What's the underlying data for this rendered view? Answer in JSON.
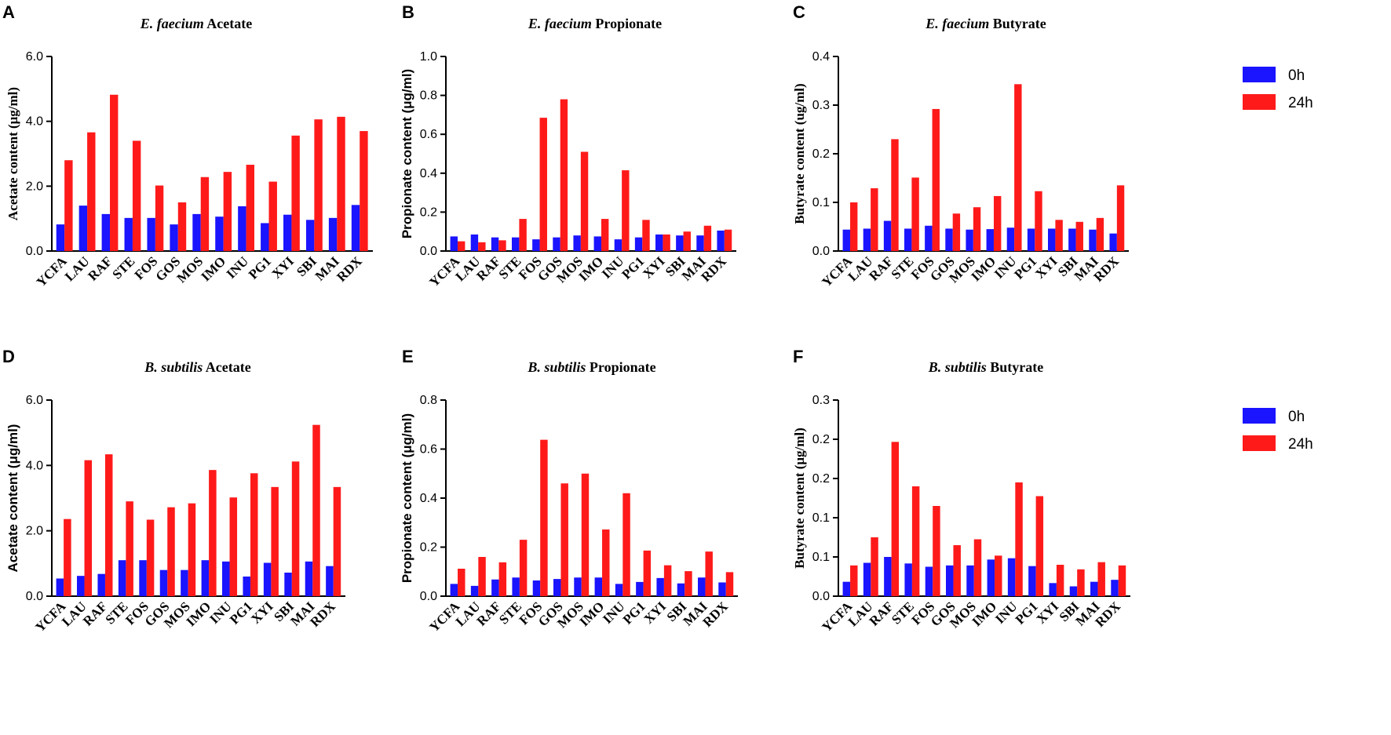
{
  "colors": {
    "series_0h": "#1a14ff",
    "series_24h": "#ff1a1a"
  },
  "legend": [
    {
      "name": "0h",
      "color": "#1a14ff"
    },
    {
      "name": "24h",
      "color": "#ff1a1a"
    }
  ],
  "chart_data": [
    {
      "panel": "A",
      "type": "bar",
      "title_species": "E. faecium",
      "title_metric": "Acetate",
      "ylabel": "Acetate content (μg/ml)",
      "ylim": [
        0,
        6
      ],
      "yticks": [
        "0.0",
        "2.0",
        "4.0",
        "6.0"
      ],
      "categories": [
        "YCFA",
        "LAU",
        "RAF",
        "STE",
        "FOS",
        "GOS",
        "MOS",
        "IMO",
        "INU",
        "PG1",
        "XYI",
        "SBI",
        "MAI",
        "RDX"
      ],
      "series": [
        {
          "name": "0h",
          "values": [
            0.82,
            1.4,
            1.14,
            1.02,
            1.02,
            0.82,
            1.14,
            1.06,
            1.38,
            0.86,
            1.12,
            0.96,
            1.02,
            1.42
          ]
        },
        {
          "name": "24h",
          "values": [
            2.8,
            3.66,
            4.82,
            3.4,
            2.02,
            1.5,
            2.28,
            2.44,
            2.66,
            2.14,
            3.56,
            4.06,
            4.14,
            3.7
          ]
        }
      ]
    },
    {
      "panel": "B",
      "type": "bar",
      "title_species": "E. faecium",
      "title_metric": "Propionate",
      "ylabel": "Propionate content (μg/ml)",
      "ylim": [
        0,
        1
      ],
      "yticks": [
        "0.0",
        "0.2",
        "0.4",
        "0.6",
        "0.8",
        "1.0"
      ],
      "categories": [
        "YCFA",
        "LAU",
        "RAF",
        "STE",
        "FOS",
        "GOS",
        "MOS",
        "IMO",
        "INU",
        "PG1",
        "XYI",
        "SBI",
        "MAI",
        "RDX"
      ],
      "series": [
        {
          "name": "0h",
          "values": [
            0.075,
            0.085,
            0.07,
            0.07,
            0.06,
            0.07,
            0.08,
            0.075,
            0.06,
            0.07,
            0.085,
            0.08,
            0.08,
            0.105
          ]
        },
        {
          "name": "24h",
          "values": [
            0.05,
            0.045,
            0.055,
            0.165,
            0.685,
            0.78,
            0.51,
            0.165,
            0.415,
            0.16,
            0.085,
            0.1,
            0.13,
            0.11
          ]
        }
      ]
    },
    {
      "panel": "C",
      "type": "bar",
      "title_species": "E. faecium",
      "title_metric": "Butyrate",
      "ylabel": "Butyrate content (ug/ml)",
      "ylim": [
        0,
        0.4
      ],
      "yticks": [
        "0.0",
        "0.1",
        "0.2",
        "0.3",
        "0.4"
      ],
      "categories": [
        "YCFA",
        "LAU",
        "RAF",
        "STE",
        "FOS",
        "GOS",
        "MOS",
        "IMO",
        "INU",
        "PG1",
        "XYI",
        "SBI",
        "MAI",
        "RDX"
      ],
      "series": [
        {
          "name": "0h",
          "values": [
            0.044,
            0.046,
            0.062,
            0.046,
            0.052,
            0.046,
            0.044,
            0.045,
            0.048,
            0.046,
            0.046,
            0.046,
            0.044,
            0.036
          ]
        },
        {
          "name": "24h",
          "values": [
            0.1,
            0.129,
            0.23,
            0.151,
            0.292,
            0.077,
            0.09,
            0.113,
            0.343,
            0.123,
            0.064,
            0.06,
            0.068,
            0.135
          ]
        }
      ]
    },
    {
      "panel": "D",
      "type": "bar",
      "title_species": "B. subtilis",
      "title_metric": "Acetate",
      "ylabel": "Acetate content (μg/ml)",
      "ylim": [
        0,
        6
      ],
      "yticks": [
        "0.0",
        "2.0",
        "4.0",
        "6.0"
      ],
      "categories": [
        "YCFA",
        "LAU",
        "RAF",
        "STE",
        "FOS",
        "GOS",
        "MOS",
        "IMO",
        "INU",
        "PG1",
        "XYI",
        "SBI",
        "MAI",
        "RDX"
      ],
      "series": [
        {
          "name": "0h",
          "values": [
            0.54,
            0.62,
            0.68,
            1.1,
            1.1,
            0.8,
            0.8,
            1.1,
            1.06,
            0.6,
            1.02,
            0.72,
            1.06,
            0.92
          ]
        },
        {
          "name": "24h",
          "values": [
            2.36,
            4.16,
            4.34,
            2.9,
            2.34,
            2.72,
            2.84,
            3.86,
            3.02,
            3.76,
            3.34,
            4.12,
            5.24,
            3.34
          ]
        }
      ]
    },
    {
      "panel": "E",
      "type": "bar",
      "title_species": "B. subtilis",
      "title_metric": "Propionate",
      "ylabel": "Propionate content (μg/ml)",
      "ylim": [
        0,
        0.8
      ],
      "yticks": [
        "0.0",
        "0.2",
        "0.4",
        "0.6",
        "0.8"
      ],
      "categories": [
        "YCFA",
        "LAU",
        "RAF",
        "STE",
        "FOS",
        "GOS",
        "MOS",
        "IMO",
        "INU",
        "PG1",
        "XYI",
        "SBI",
        "MAI",
        "RDX"
      ],
      "series": [
        {
          "name": "0h",
          "values": [
            0.05,
            0.042,
            0.068,
            0.076,
            0.064,
            0.07,
            0.076,
            0.076,
            0.05,
            0.058,
            0.074,
            0.052,
            0.076,
            0.056
          ]
        },
        {
          "name": "24h",
          "values": [
            0.112,
            0.16,
            0.138,
            0.23,
            0.638,
            0.46,
            0.5,
            0.272,
            0.42,
            0.186,
            0.126,
            0.102,
            0.182,
            0.098
          ]
        }
      ]
    },
    {
      "panel": "F",
      "type": "bar",
      "title_species": "B. subtilis",
      "title_metric": "Butyrate",
      "ylabel": "Butyrate content (μg/ml)",
      "ylim": [
        0,
        0.3
      ],
      "yticks": [
        "0.0",
        "0.1",
        "0.1",
        "0.2",
        "0.2",
        "0.3"
      ],
      "categories": [
        "YCFA",
        "LAU",
        "RAF",
        "STE",
        "FOS",
        "GOS",
        "MOS",
        "IMO",
        "INU",
        "PG1",
        "XYI",
        "SBI",
        "MAI",
        "RDX"
      ],
      "series": [
        {
          "name": "0h",
          "values": [
            0.022,
            0.051,
            0.06,
            0.05,
            0.045,
            0.047,
            0.047,
            0.056,
            0.058,
            0.046,
            0.02,
            0.015,
            0.022,
            0.025
          ]
        },
        {
          "name": "24h",
          "values": [
            0.047,
            0.09,
            0.236,
            0.168,
            0.138,
            0.078,
            0.087,
            0.062,
            0.174,
            0.153,
            0.048,
            0.041,
            0.052,
            0.047
          ]
        }
      ]
    }
  ]
}
